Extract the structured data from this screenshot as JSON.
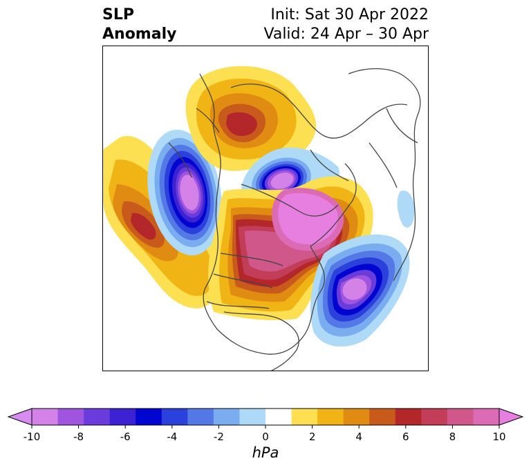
{
  "title": {
    "left_line1": "SLP",
    "left_line2": "Anomaly",
    "right_line1": "Init: Sat 30 Apr 2022",
    "right_line2": "Valid: 24 Apr – 30 Apr"
  },
  "colorbar": {
    "unit": "hPa",
    "range": [
      -10,
      10
    ],
    "tick_labels": [
      "-10",
      "-8",
      "-6",
      "-4",
      "-2",
      "0",
      "2",
      "4",
      "6",
      "8",
      "10"
    ],
    "under_color": "#d78cf0",
    "over_color": "#e77fe1",
    "bin_colors": [
      "#d482e8",
      "#9f55e0",
      "#6a3cdb",
      "#3d22d3",
      "#0006cf",
      "#2c41dc",
      "#5478e6",
      "#7aadf0",
      "#aed9f7",
      "#ffffff",
      "#fce051",
      "#f0b414",
      "#e08b12",
      "#c85a1c",
      "#b3272b",
      "#c13d58",
      "#d0578a",
      "#db6bb4"
    ]
  },
  "map": {
    "projection": "polar stereographic, North America",
    "features": [
      {
        "name": "negative anomaly",
        "region": "Gulf of Alaska / NE Pacific",
        "peak_hPa": -10
      },
      {
        "name": "positive anomaly",
        "region": "Central North Pacific",
        "peak_hPa": 6
      },
      {
        "name": "positive anomaly",
        "region": "Canada / Hudson Bay / Greenland",
        "peak_hPa": 10
      },
      {
        "name": "negative anomaly",
        "region": "Arctic / Beaufort Sea",
        "peak_hPa": -10
      },
      {
        "name": "positive anomaly",
        "region": "East Siberia",
        "peak_hPa": 6
      },
      {
        "name": "negative anomaly",
        "region": "Western North Atlantic",
        "peak_hPa": -10
      },
      {
        "name": "negative anomaly",
        "region": "Europe (weak)",
        "peak_hPa": -2
      }
    ]
  }
}
